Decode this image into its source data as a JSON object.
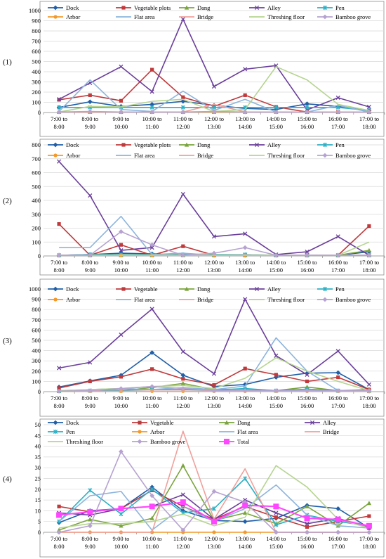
{
  "chart_data": [
    {
      "panel_label": "(1)",
      "type": "line",
      "ylim": [
        0,
        1000
      ],
      "yticks": [
        0,
        100,
        200,
        300,
        400,
        500,
        600,
        700,
        800,
        900,
        1000
      ],
      "categories": [
        "7:00 to\n8:00",
        "8:00 to\n9:00",
        "9:00 to\n10:00",
        "10:00 to\n11:00",
        "11:00 to\n12:00",
        "12:00 to\n13:00",
        "13:00 to\n14:00",
        "14:00 to\n15:00",
        "15:00 to\n16:00",
        "16:00 to\n17:00",
        "17:00 to\n18:00"
      ],
      "series": [
        {
          "name": "Dock",
          "color": "#1f5fa8",
          "marker": "diamond",
          "values": [
            50,
            105,
            60,
            80,
            110,
            70,
            40,
            30,
            85,
            60,
            20
          ]
        },
        {
          "name": "Vegetable plots",
          "color": "#c0393b",
          "marker": "square",
          "values": [
            125,
            170,
            115,
            420,
            150,
            60,
            170,
            55,
            5,
            5,
            5
          ]
        },
        {
          "name": "Dang",
          "color": "#7aa43c",
          "marker": "triangle",
          "values": [
            5,
            5,
            5,
            5,
            5,
            5,
            5,
            5,
            5,
            5,
            5
          ]
        },
        {
          "name": "Alley",
          "color": "#6b3f9b",
          "marker": "x",
          "values": [
            130,
            290,
            450,
            205,
            915,
            255,
            425,
            460,
            25,
            145,
            55
          ]
        },
        {
          "name": "Pen",
          "color": "#2bb0c5",
          "marker": "star",
          "values": [
            50,
            50,
            50,
            50,
            50,
            50,
            50,
            50,
            50,
            50,
            20
          ]
        },
        {
          "name": "Arbor",
          "color": "#f39a2a",
          "marker": "circle",
          "values": [
            5,
            5,
            5,
            5,
            5,
            5,
            5,
            5,
            5,
            5,
            5
          ]
        },
        {
          "name": "Flat area",
          "color": "#8cb4dd",
          "marker": "line",
          "values": [
            10,
            320,
            30,
            10,
            210,
            20,
            130,
            5,
            5,
            70,
            5
          ]
        },
        {
          "name": "Bridge",
          "color": "#f0a09b",
          "marker": "line",
          "values": [
            5,
            5,
            5,
            5,
            5,
            80,
            5,
            5,
            5,
            5,
            5
          ]
        },
        {
          "name": "Threshing floor",
          "color": "#b5d48f",
          "marker": "line",
          "values": [
            5,
            60,
            55,
            110,
            130,
            10,
            30,
            450,
            320,
            80,
            20
          ]
        },
        {
          "name": "Bamboo grove",
          "color": "#b6a2d1",
          "marker": "diamond",
          "values": [
            5,
            10,
            5,
            5,
            5,
            10,
            5,
            5,
            5,
            5,
            5
          ]
        }
      ]
    },
    {
      "panel_label": "(2)",
      "type": "line",
      "ylim": [
        0,
        800
      ],
      "yticks": [
        0,
        100,
        200,
        300,
        400,
        500,
        600,
        700,
        800
      ],
      "categories": [
        "7:00 to\n8:00",
        "8:00 to\n9:00",
        "9:00 to\n10:00",
        "10:00 to\n11:00",
        "11:00 to\n12:00",
        "12:00 to\n13:00",
        "13:00 to\n14:00",
        "14:00 to\n15:00",
        "15:00 to\n16:00",
        "16:00 to\n17:00",
        "17:00 to\n18:00"
      ],
      "series": [
        {
          "name": "Dock",
          "color": "#1f5fa8",
          "marker": "diamond",
          "values": [
            5,
            10,
            20,
            15,
            10,
            5,
            5,
            5,
            5,
            5,
            30
          ]
        },
        {
          "name": "Vegetable plots",
          "color": "#c0393b",
          "marker": "square",
          "values": [
            230,
            5,
            80,
            5,
            70,
            5,
            5,
            5,
            5,
            5,
            215
          ]
        },
        {
          "name": "Dang",
          "color": "#7aa43c",
          "marker": "triangle",
          "values": [
            5,
            5,
            5,
            5,
            5,
            5,
            5,
            5,
            5,
            5,
            40
          ]
        },
        {
          "name": "Alley",
          "color": "#6b3f9b",
          "marker": "x",
          "values": [
            680,
            435,
            40,
            60,
            445,
            140,
            160,
            10,
            30,
            140,
            5
          ]
        },
        {
          "name": "Pen",
          "color": "#2bb0c5",
          "marker": "star",
          "values": [
            5,
            10,
            10,
            10,
            10,
            10,
            10,
            5,
            5,
            5,
            5
          ]
        },
        {
          "name": "Arbor",
          "color": "#f39a2a",
          "marker": "circle",
          "values": [
            5,
            5,
            5,
            5,
            5,
            5,
            5,
            5,
            5,
            5,
            5
          ]
        },
        {
          "name": "Flat area",
          "color": "#8cb4dd",
          "marker": "line",
          "values": [
            60,
            60,
            285,
            10,
            20,
            5,
            10,
            5,
            5,
            5,
            5
          ]
        },
        {
          "name": "Bridge",
          "color": "#f0a09b",
          "marker": "line",
          "values": [
            5,
            5,
            5,
            5,
            5,
            5,
            5,
            5,
            5,
            5,
            5
          ]
        },
        {
          "name": "Threshing floor",
          "color": "#b5d48f",
          "marker": "line",
          "values": [
            5,
            5,
            5,
            5,
            5,
            5,
            5,
            5,
            5,
            5,
            100
          ]
        },
        {
          "name": "Bamboo grove",
          "color": "#b6a2d1",
          "marker": "diamond",
          "values": [
            5,
            5,
            175,
            80,
            5,
            20,
            60,
            5,
            5,
            5,
            5
          ]
        }
      ]
    },
    {
      "panel_label": "(3)",
      "type": "line",
      "ylim": [
        0,
        1000
      ],
      "yticks": [
        0,
        100,
        200,
        300,
        400,
        500,
        600,
        700,
        800,
        900,
        1000
      ],
      "categories": [
        "7:00 to\n8:00",
        "8:00 to\n9:00",
        "9:00 to\n10:00",
        "10:00 to\n11:00",
        "11:00 to\n12:00",
        "12:00 to\n13:00",
        "13:00 to\n14:00",
        "14:00 to\n15:00",
        "15:00 to\n16:00",
        "16:00 to\n17:00",
        "17:00 to\n18:00"
      ],
      "series": [
        {
          "name": "Dock",
          "color": "#1f5fa8",
          "marker": "diamond",
          "values": [
            45,
            105,
            160,
            380,
            160,
            50,
            70,
            140,
            180,
            185,
            20
          ]
        },
        {
          "name": "Vegetable",
          "color": "#c0393b",
          "marker": "square",
          "values": [
            35,
            100,
            145,
            220,
            125,
            65,
            225,
            165,
            100,
            140,
            20
          ]
        },
        {
          "name": "Dang",
          "color": "#7aa43c",
          "marker": "triangle",
          "values": [
            5,
            10,
            10,
            40,
            80,
            20,
            25,
            10,
            45,
            10,
            20
          ]
        },
        {
          "name": "Alley",
          "color": "#6b3f9b",
          "marker": "x",
          "values": [
            230,
            285,
            555,
            805,
            390,
            175,
            900,
            350,
            165,
            395,
            70
          ]
        },
        {
          "name": "Pen",
          "color": "#2bb0c5",
          "marker": "star",
          "values": [
            5,
            10,
            15,
            20,
            20,
            15,
            30,
            10,
            25,
            10,
            5
          ]
        },
        {
          "name": "Arbor",
          "color": "#f39a2a",
          "marker": "circle",
          "values": [
            5,
            5,
            5,
            5,
            5,
            5,
            5,
            5,
            5,
            5,
            5
          ]
        },
        {
          "name": "Flat area",
          "color": "#8cb4dd",
          "marker": "line",
          "values": [
            10,
            20,
            30,
            20,
            40,
            20,
            55,
            525,
            200,
            10,
            10
          ]
        },
        {
          "name": "Bridge",
          "color": "#f0a09b",
          "marker": "line",
          "values": [
            5,
            5,
            5,
            5,
            5,
            5,
            5,
            5,
            5,
            5,
            5
          ]
        },
        {
          "name": "Threshing floor",
          "color": "#b5d48f",
          "marker": "line",
          "values": [
            10,
            20,
            30,
            50,
            60,
            30,
            130,
            330,
            200,
            100,
            10
          ]
        },
        {
          "name": "Bamboo grove",
          "color": "#b6a2d1",
          "marker": "diamond",
          "values": [
            5,
            10,
            30,
            50,
            30,
            10,
            10,
            10,
            10,
            10,
            10
          ]
        }
      ]
    },
    {
      "panel_label": "(4)",
      "type": "line",
      "ylim": [
        0,
        50
      ],
      "yticks": [
        0,
        5,
        10,
        15,
        20,
        25,
        30,
        35,
        40,
        45,
        50
      ],
      "categories": [
        "7:00 to\n8:00",
        "8:00 to\n9:00",
        "9:00 to\n10:00",
        "10:00 to\n11:00",
        "11:00 to\n12:00",
        "12:00 to\n13:00",
        "13:00 to\n14:00",
        "14:00 to\n15:00",
        "15:00 to\n16:00",
        "16:00 to\n17:00",
        "17:00 to\n18:00"
      ],
      "series": [
        {
          "name": "Dock",
          "color": "#1f5fa8",
          "marker": "diamond",
          "values": [
            4.5,
            10,
            11,
            21,
            10,
            5.5,
            5,
            6.5,
            12.5,
            11,
            2
          ]
        },
        {
          "name": "Vegetable",
          "color": "#c0393b",
          "marker": "square",
          "values": [
            12,
            9.5,
            11,
            19.5,
            12,
            6,
            12,
            7,
            2.5,
            5,
            7.5
          ]
        },
        {
          "name": "Dang",
          "color": "#7aa43c",
          "marker": "triangle",
          "values": [
            1,
            6,
            3,
            6.5,
            31,
            5.5,
            9,
            4,
            12,
            3,
            13.5
          ]
        },
        {
          "name": "Alley",
          "color": "#6b3f9b",
          "marker": "x",
          "values": [
            9,
            8,
            11,
            12,
            17.5,
            6,
            15,
            9,
            4,
            6.5,
            2
          ]
        },
        {
          "name": "Pen",
          "color": "#2bb0c5",
          "marker": "star",
          "values": [
            5,
            19.5,
            8.5,
            20,
            9,
            11,
            25,
            3.5,
            8,
            5,
            3
          ]
        },
        {
          "name": "Arbor",
          "color": "#f39a2a",
          "marker": "circle",
          "values": [
            0,
            0,
            0,
            0,
            0,
            0,
            0,
            0,
            0,
            0,
            0
          ]
        },
        {
          "name": "Flat area",
          "color": "#8cb4dd",
          "marker": "line",
          "values": [
            5,
            17,
            19,
            1,
            12,
            5,
            11,
            22,
            8,
            3,
            2
          ]
        },
        {
          "name": "Bridge",
          "color": "#f0a09b",
          "marker": "line",
          "values": [
            0,
            0,
            0,
            0,
            47,
            6,
            29.5,
            0,
            0,
            0,
            0
          ]
        },
        {
          "name": "Threshing floor",
          "color": "#b5d48f",
          "marker": "line",
          "values": [
            2,
            4,
            4,
            5,
            8.5,
            3,
            7,
            31,
            21,
            6,
            2
          ]
        },
        {
          "name": "Bamboo grove",
          "color": "#b6a2d1",
          "marker": "diamond",
          "values": [
            0,
            3,
            37.5,
            17,
            1,
            19,
            14,
            0,
            0,
            0,
            0
          ]
        },
        {
          "name": "Total",
          "color": "#ff45ff",
          "marker": "bigsquare",
          "values": [
            8,
            9.5,
            11,
            12,
            14,
            5,
            12.5,
            12,
            6.5,
            6,
            3
          ]
        }
      ]
    }
  ]
}
